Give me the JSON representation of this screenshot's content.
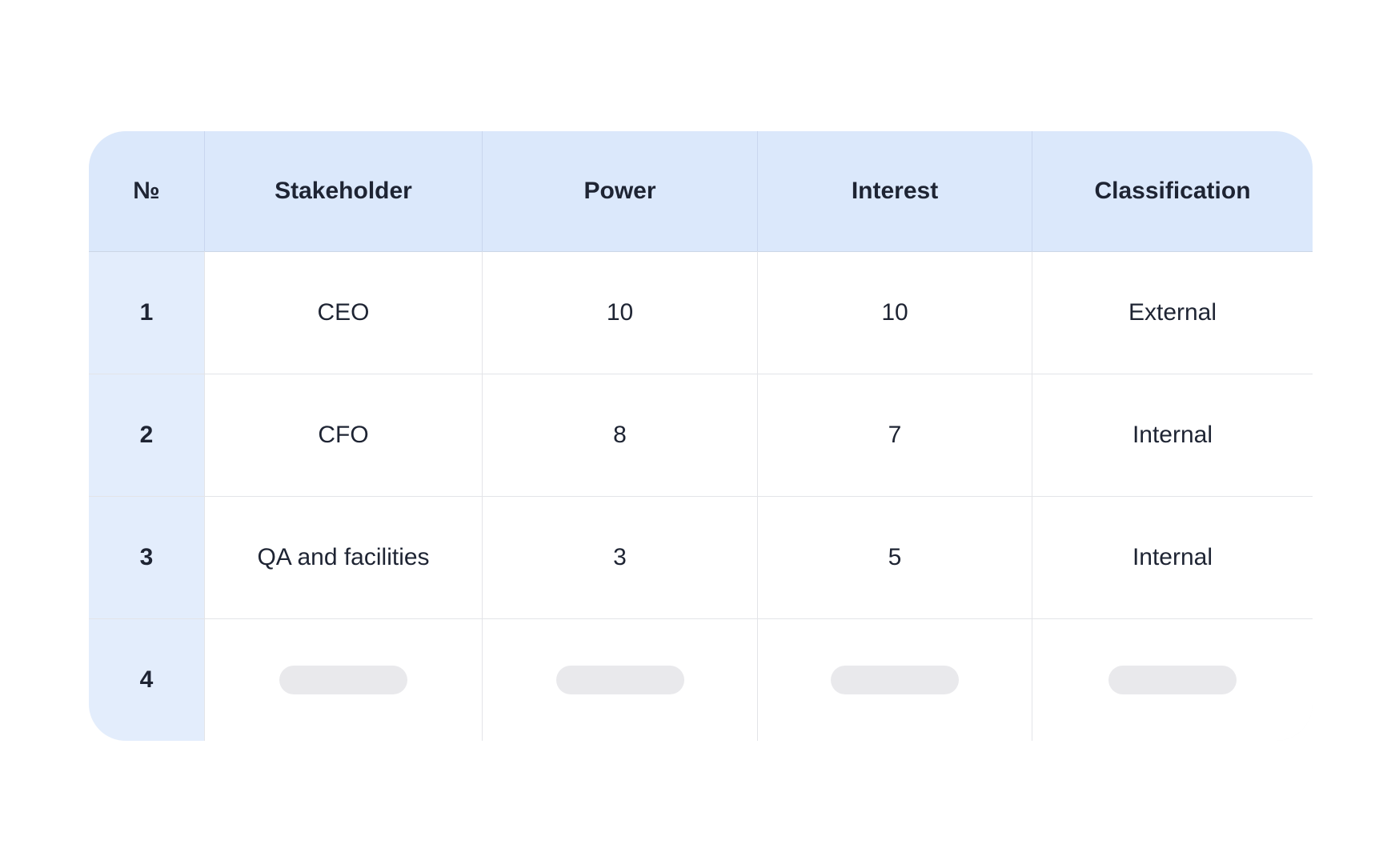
{
  "table": {
    "columns": [
      "№",
      "Stakeholder",
      "Power",
      "Interest",
      "Classification"
    ],
    "rows": [
      {
        "num": "1",
        "stakeholder": "CEO",
        "power": "10",
        "interest": "10",
        "classification": "External"
      },
      {
        "num": "2",
        "stakeholder": "CFO",
        "power": "8",
        "interest": "7",
        "classification": "Internal"
      },
      {
        "num": "3",
        "stakeholder": "QA and facilities",
        "power": "3",
        "interest": "5",
        "classification": "Internal"
      },
      {
        "num": "4",
        "stakeholder": "",
        "power": "",
        "interest": "",
        "classification": ""
      }
    ],
    "empty_row_index": 4,
    "empty_cell_placeholders": 4
  },
  "colors": {
    "header-bg": "#dbe8fb",
    "num-col-bg": "#e3edfc",
    "row-border": "#e3e4e8",
    "header-border": "#ccd6e6",
    "header-divider": "#c9d6ee",
    "text": "#1e2433",
    "placeholder": "#e9e9ec",
    "page-bg": "#ffffff"
  }
}
